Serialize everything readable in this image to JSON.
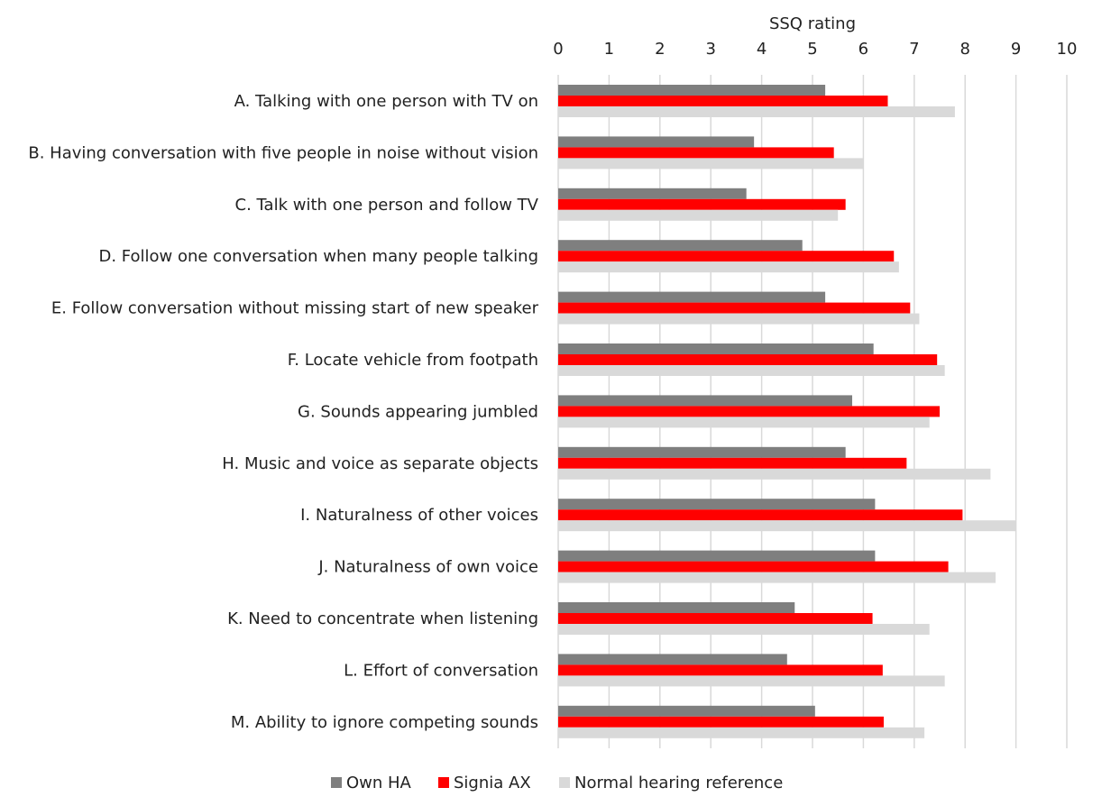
{
  "chart_data": {
    "type": "bar",
    "orientation": "horizontal",
    "title": "SSQ rating",
    "xlim": [
      0,
      10
    ],
    "xticks": [
      "0",
      "1",
      "2",
      "3",
      "4",
      "5",
      "6",
      "7",
      "8",
      "9",
      "10"
    ],
    "grid": true,
    "legend_position": "bottom",
    "categories": [
      "A. Talking with one person with TV on",
      "B. Having conversation with five people in noise without vision",
      "C. Talk with one person and follow TV",
      "D. Follow one conversation when many people talking",
      "E. Follow conversation without missing start of new speaker",
      "F. Locate vehicle from footpath",
      "G. Sounds appearing jumbled",
      "H. Music and voice as separate objects",
      "I. Naturalness of other voices",
      "J. Naturalness of own voice",
      "K. Need to concentrate when listening",
      "L. Effort of conversation",
      "M. Ability to ignore competing sounds"
    ],
    "series": [
      {
        "name": "Own HA",
        "color": "#7f7f7f",
        "values": [
          5.25,
          3.85,
          3.7,
          4.8,
          5.25,
          6.2,
          5.78,
          5.65,
          6.23,
          6.23,
          4.65,
          4.5,
          5.05
        ]
      },
      {
        "name": "Signia AX",
        "color": "#ff0000",
        "values": [
          6.48,
          5.42,
          5.65,
          6.6,
          6.92,
          7.45,
          7.5,
          6.85,
          7.95,
          7.67,
          6.18,
          6.38,
          6.4
        ]
      },
      {
        "name": "Normal hearing reference",
        "color": "#d9d9d9",
        "values": [
          7.8,
          6.0,
          5.5,
          6.7,
          7.1,
          7.6,
          7.3,
          8.5,
          9.0,
          8.6,
          7.3,
          7.6,
          7.2
        ]
      }
    ]
  }
}
